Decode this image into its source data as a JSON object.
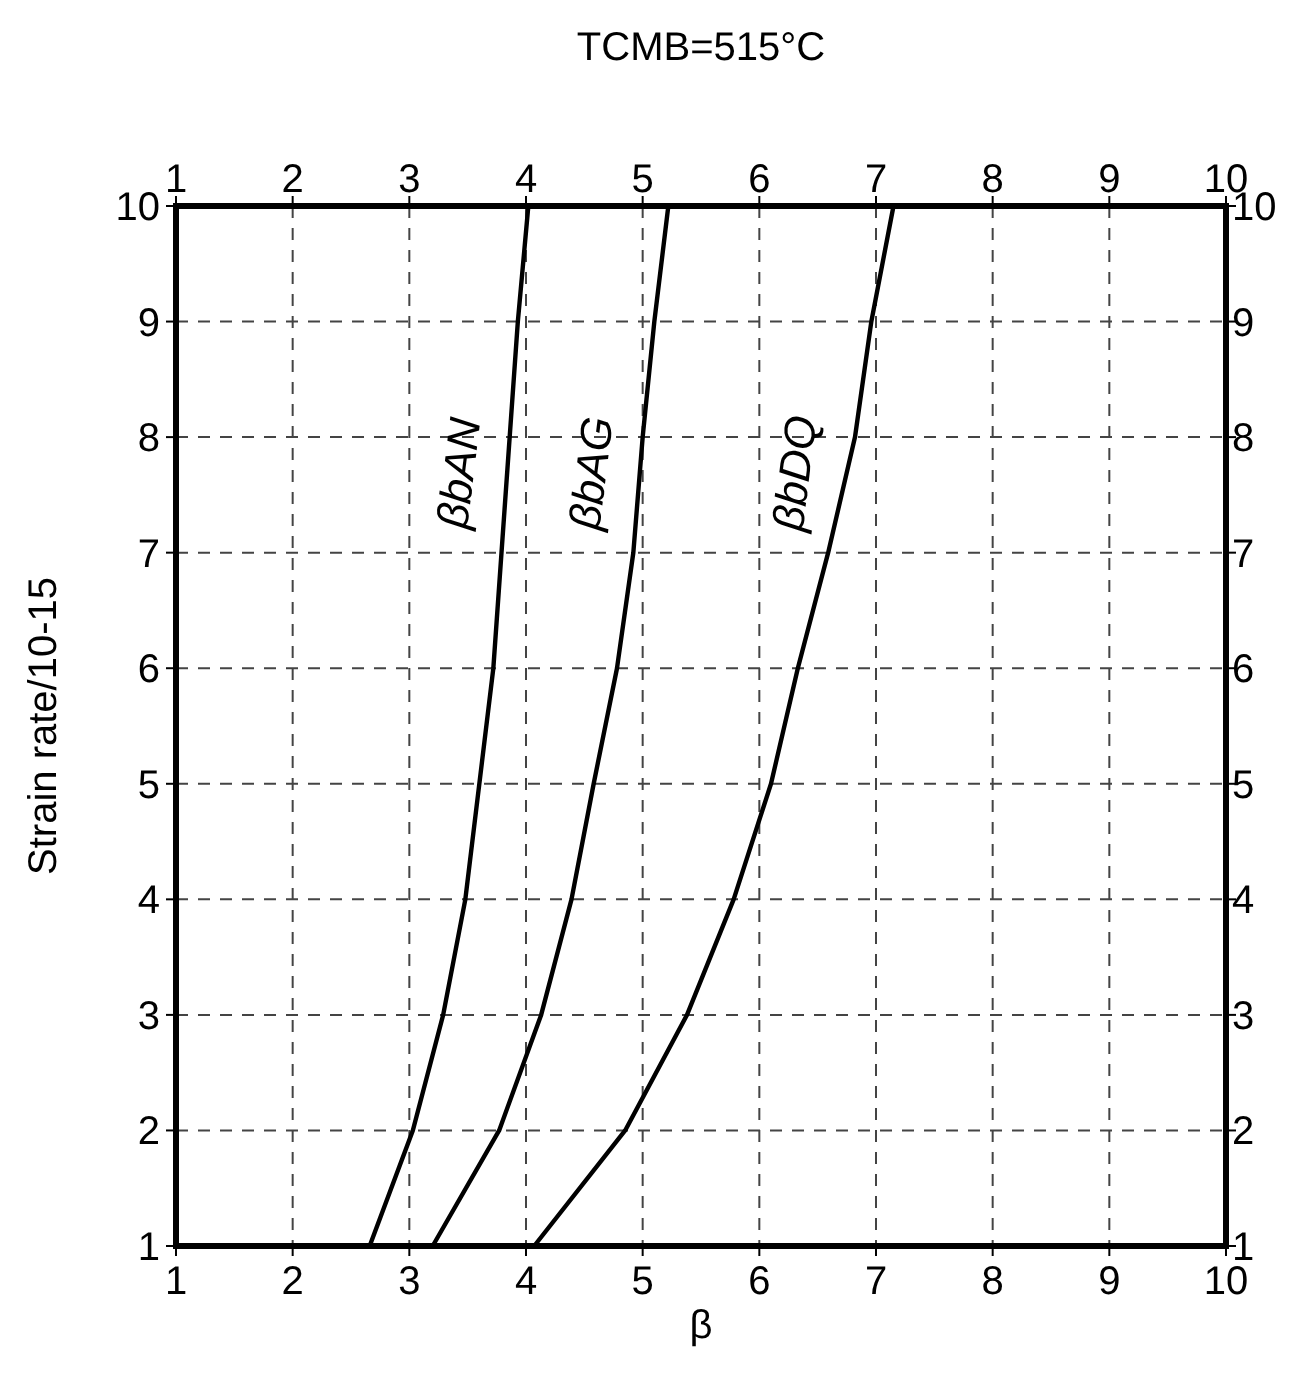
{
  "chart_data": {
    "type": "line",
    "title": "TCMB=515°C",
    "xlabel": "β",
    "ylabel": "Strain rate/10-15",
    "series": [
      {
        "name": "βbAN",
        "color": "#000000",
        "x": [
          2.66,
          3.03,
          3.29,
          3.48,
          3.6,
          3.72,
          3.79,
          3.86,
          3.93,
          4.02
        ],
        "values": [
          1,
          2,
          3,
          4,
          5,
          6,
          7,
          8,
          9,
          10
        ]
      },
      {
        "name": "βbAG",
        "color": "#000000",
        "x": [
          3.2,
          3.77,
          4.13,
          4.39,
          4.58,
          4.78,
          4.92,
          5.0,
          5.1,
          5.22
        ],
        "values": [
          1,
          2,
          3,
          4,
          5,
          6,
          7,
          8,
          9,
          10
        ]
      },
      {
        "name": "βbDQ",
        "color": "#000000",
        "x": [
          4.07,
          4.85,
          5.38,
          5.78,
          6.1,
          6.33,
          6.59,
          6.82,
          6.96,
          7.15
        ],
        "values": [
          1,
          2,
          3,
          4,
          5,
          6,
          7,
          8,
          9,
          10
        ]
      }
    ],
    "xlim": [
      1,
      10
    ],
    "xticks": [
      1,
      2,
      3,
      4,
      5,
      6,
      7,
      8,
      9,
      10
    ],
    "x2lim": [
      1,
      10
    ],
    "x2ticks": [
      1,
      2,
      3,
      4,
      5,
      6,
      7,
      8,
      9,
      10
    ],
    "ylim": [
      1,
      10
    ],
    "yticks": [
      1,
      2,
      3,
      4,
      5,
      6,
      7,
      8,
      9,
      10
    ],
    "y2lim": [
      1,
      10
    ],
    "y2ticks": [
      1,
      2,
      3,
      4,
      5,
      6,
      7,
      8,
      9,
      10
    ],
    "grid": true,
    "marker": "none",
    "line_style": "solid"
  }
}
